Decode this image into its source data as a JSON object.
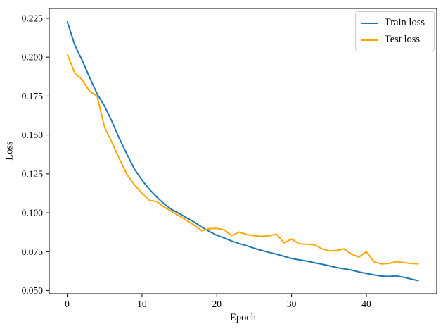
{
  "chart_data": {
    "type": "line",
    "title": "",
    "xlabel": "Epoch",
    "ylabel": "Loss",
    "grid": false,
    "legend_position": "upper right",
    "background_color": "#ffffff",
    "spine_color": "#000000",
    "xlim": [
      -2.4,
      49.4
    ],
    "ylim": [
      0.048,
      0.2313
    ],
    "xticks": [
      0,
      10,
      20,
      30,
      40
    ],
    "xtick_labels": [
      "0",
      "10",
      "20",
      "30",
      "40"
    ],
    "yticks": [
      0.05,
      0.075,
      0.1,
      0.125,
      0.15,
      0.175,
      0.2,
      0.225
    ],
    "ytick_labels": [
      "0.050",
      "0.075",
      "0.100",
      "0.125",
      "0.150",
      "0.175",
      "0.200",
      "0.225"
    ],
    "x": [
      0,
      1,
      2,
      3,
      4,
      5,
      6,
      7,
      8,
      9,
      10,
      11,
      12,
      13,
      14,
      15,
      16,
      17,
      18,
      19,
      20,
      21,
      22,
      23,
      24,
      25,
      26,
      27,
      28,
      29,
      30,
      31,
      32,
      33,
      34,
      35,
      36,
      37,
      38,
      39,
      40,
      41,
      42,
      43,
      44,
      45,
      46,
      47
    ],
    "series": [
      {
        "name": "Train loss",
        "color": "#1f77b4",
        "values": [
          0.223,
          0.208,
          0.198,
          0.187,
          0.1765,
          0.1685,
          0.1585,
          0.1475,
          0.1375,
          0.128,
          0.121,
          0.115,
          0.11,
          0.1055,
          0.102,
          0.0995,
          0.0967,
          0.094,
          0.0908,
          0.088,
          0.0856,
          0.0838,
          0.0818,
          0.0802,
          0.0788,
          0.0772,
          0.0758,
          0.0745,
          0.0734,
          0.072,
          0.0706,
          0.0698,
          0.069,
          0.0679,
          0.067,
          0.066,
          0.0648,
          0.064,
          0.0632,
          0.062,
          0.061,
          0.0601,
          0.0593,
          0.0591,
          0.0594,
          0.0586,
          0.0574,
          0.0563
        ]
      },
      {
        "name": "Test loss",
        "color": "#ffa500",
        "values": [
          0.202,
          0.19,
          0.1855,
          0.178,
          0.175,
          0.155,
          0.145,
          0.1345,
          0.1245,
          0.118,
          0.1125,
          0.108,
          0.1072,
          0.1035,
          0.1008,
          0.098,
          0.095,
          0.092,
          0.0885,
          0.0898,
          0.09,
          0.089,
          0.0853,
          0.0876,
          0.086,
          0.0853,
          0.0848,
          0.0853,
          0.0862,
          0.0806,
          0.0832,
          0.0801,
          0.0798,
          0.0795,
          0.077,
          0.0755,
          0.0758,
          0.0768,
          0.0735,
          0.0715,
          0.075,
          0.0686,
          0.0671,
          0.0674,
          0.0686,
          0.068,
          0.0674,
          0.0672
        ]
      }
    ]
  }
}
